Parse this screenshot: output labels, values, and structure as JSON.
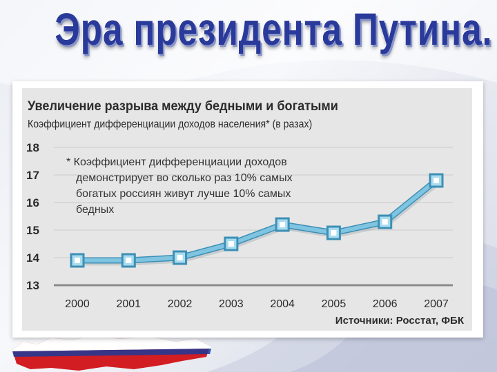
{
  "slide": {
    "title": "Эра президента Путина."
  },
  "chart_data": {
    "type": "line",
    "title": "Увеличение разрыва между бедными и богатыми",
    "subtitle": "Коэффициент дифференциации доходов населения* (в разах)",
    "note_lines": [
      "* Коэффициент дифференциации доходов",
      "демонстрирует во сколько раз 10% самых",
      "богатых россиян живут лучше 10% самых",
      "бедных"
    ],
    "source": "Источники: Росстат, ФБК",
    "categories": [
      "2000",
      "2001",
      "2002",
      "2003",
      "2004",
      "2005",
      "2006",
      "2007"
    ],
    "values": [
      13.9,
      13.9,
      14.0,
      14.5,
      15.2,
      14.9,
      15.3,
      16.8
    ],
    "yticks": [
      "13",
      "14",
      "15",
      "16",
      "17",
      "18"
    ],
    "ylim": [
      13,
      18
    ],
    "grid": true,
    "colors": {
      "line": "#7fc4e0",
      "marker_fill": "#a9dcee",
      "marker_stroke": "#3d8fb5",
      "grid": "#c9c9c9",
      "axis": "#8a8a8a"
    }
  }
}
